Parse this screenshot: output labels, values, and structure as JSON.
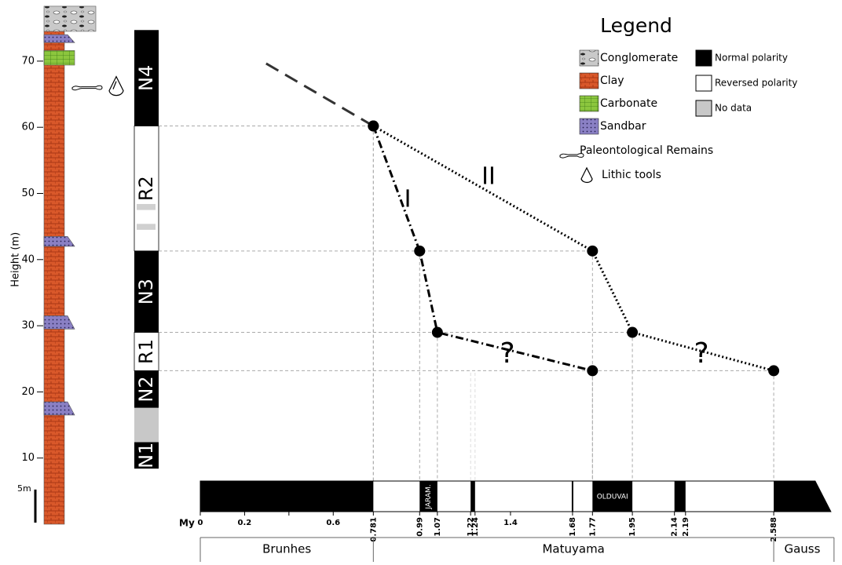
{
  "height_axis": {
    "label": "Height (m)",
    "ticks": [
      10,
      20,
      30,
      40,
      50,
      60,
      70
    ],
    "lim": [
      0,
      78
    ]
  },
  "scale_bar": {
    "label": "5m",
    "value": 5
  },
  "lithology": [
    {
      "unit": "Clay",
      "bottom": 0,
      "top": 74.5
    },
    {
      "unit": "Sandbar",
      "bottom": 16.5,
      "top": 18.5
    },
    {
      "unit": "Sandbar",
      "bottom": 29.5,
      "top": 31.5
    },
    {
      "unit": "Sandbar",
      "bottom": 42,
      "top": 43.5
    },
    {
      "unit": "Carbonate",
      "bottom": 69.4,
      "top": 71.6
    },
    {
      "unit": "Sandbar",
      "bottom": 72.8,
      "top": 74
    },
    {
      "unit": "Conglomerate",
      "bottom": 74.5,
      "top": 78.3
    }
  ],
  "finds_height": 66,
  "polarity_column": {
    "zones": [
      {
        "label": "N1",
        "color": "#000000",
        "bottom": 8.4,
        "top": 12.4
      },
      {
        "color": "#c8c8c8",
        "bottom": 12.4,
        "top": 17.6
      },
      {
        "label": "N2",
        "color": "#000000",
        "bottom": 17.6,
        "top": 23.2
      },
      {
        "label": "R1",
        "color": "#ffffff",
        "bottom": 23.2,
        "top": 29
      },
      {
        "label": "N3",
        "color": "#000000",
        "bottom": 29,
        "top": 41.3
      },
      {
        "label": "R2",
        "color": "#ffffff",
        "bottom": 41.3,
        "top": 60.2
      },
      {
        "color": "#d0d0d0",
        "bottom": 44.5,
        "top": 45.4
      },
      {
        "color": "#d0d0d0",
        "bottom": 47.5,
        "top": 48.4
      },
      {
        "label": "N4",
        "color": "#000000",
        "bottom": 60.2,
        "top": 74.7
      }
    ]
  },
  "time_axis": {
    "label": "My",
    "lim": [
      0,
      2.846
    ],
    "ticks": [
      0,
      0.2,
      0.4,
      0.6,
      {
        "value": 0.781,
        "label": "0.781"
      },
      0.99,
      1.07,
      1.22,
      1.24,
      1.4,
      1.68,
      1.77,
      1.95,
      2.14,
      2.19,
      2.588
    ],
    "normal_intervals": [
      {
        "start": 0,
        "end": 0.781
      },
      {
        "start": 0.99,
        "end": 1.07,
        "label": "JARAM."
      },
      {
        "start": 1.22,
        "end": 1.24
      },
      {
        "start": 1.77,
        "end": 1.95,
        "label": "OLDUVAI"
      },
      {
        "start": 2.14,
        "end": 2.19
      },
      {
        "start": 2.588,
        "end": 2.846
      }
    ],
    "boundary_lines": [
      1.68
    ],
    "faint_guides": [
      1.22,
      1.24
    ],
    "chrons": [
      {
        "name": "Brunhes",
        "start": 0,
        "end": 0.781
      },
      {
        "name": "Matuyama",
        "start": 0.781,
        "end": 2.588
      },
      {
        "name": "Gauss",
        "start": 2.588,
        "end": 2.846
      }
    ]
  },
  "extension": {
    "from": {
      "age": 0.781,
      "height": 60.2
    },
    "to": {
      "age": 0.294,
      "height": 69.7
    }
  },
  "correlations": [
    {
      "name": "I",
      "dash": "10 4 2 4",
      "points": [
        {
          "age": 0.781,
          "height": 60.2
        },
        {
          "age": 0.99,
          "height": 41.3
        },
        {
          "age": 1.07,
          "height": 29
        },
        {
          "age": 1.77,
          "height": 23.2
        }
      ]
    },
    {
      "name": "II",
      "dash": "2 3",
      "points": [
        {
          "age": 0.781,
          "height": 60.2
        },
        {
          "age": 1.77,
          "height": 41.3
        },
        {
          "age": 1.95,
          "height": 29
        },
        {
          "age": 2.588,
          "height": 23.2
        }
      ]
    }
  ],
  "uncertain_labels": [
    "?",
    "?"
  ],
  "legend": {
    "title": "Legend",
    "lithology": [
      "Conglomerate",
      "Clay",
      "Carbonate",
      "Sandbar"
    ],
    "polarity": [
      {
        "label": "Normal polarity",
        "color": "#000000"
      },
      {
        "label": "Reversed polarity",
        "color": "#ffffff"
      },
      {
        "label": "No data",
        "color": "#c8c8c8"
      }
    ],
    "remains": "Paleontological Remains",
    "tools": "Lithic tools"
  }
}
